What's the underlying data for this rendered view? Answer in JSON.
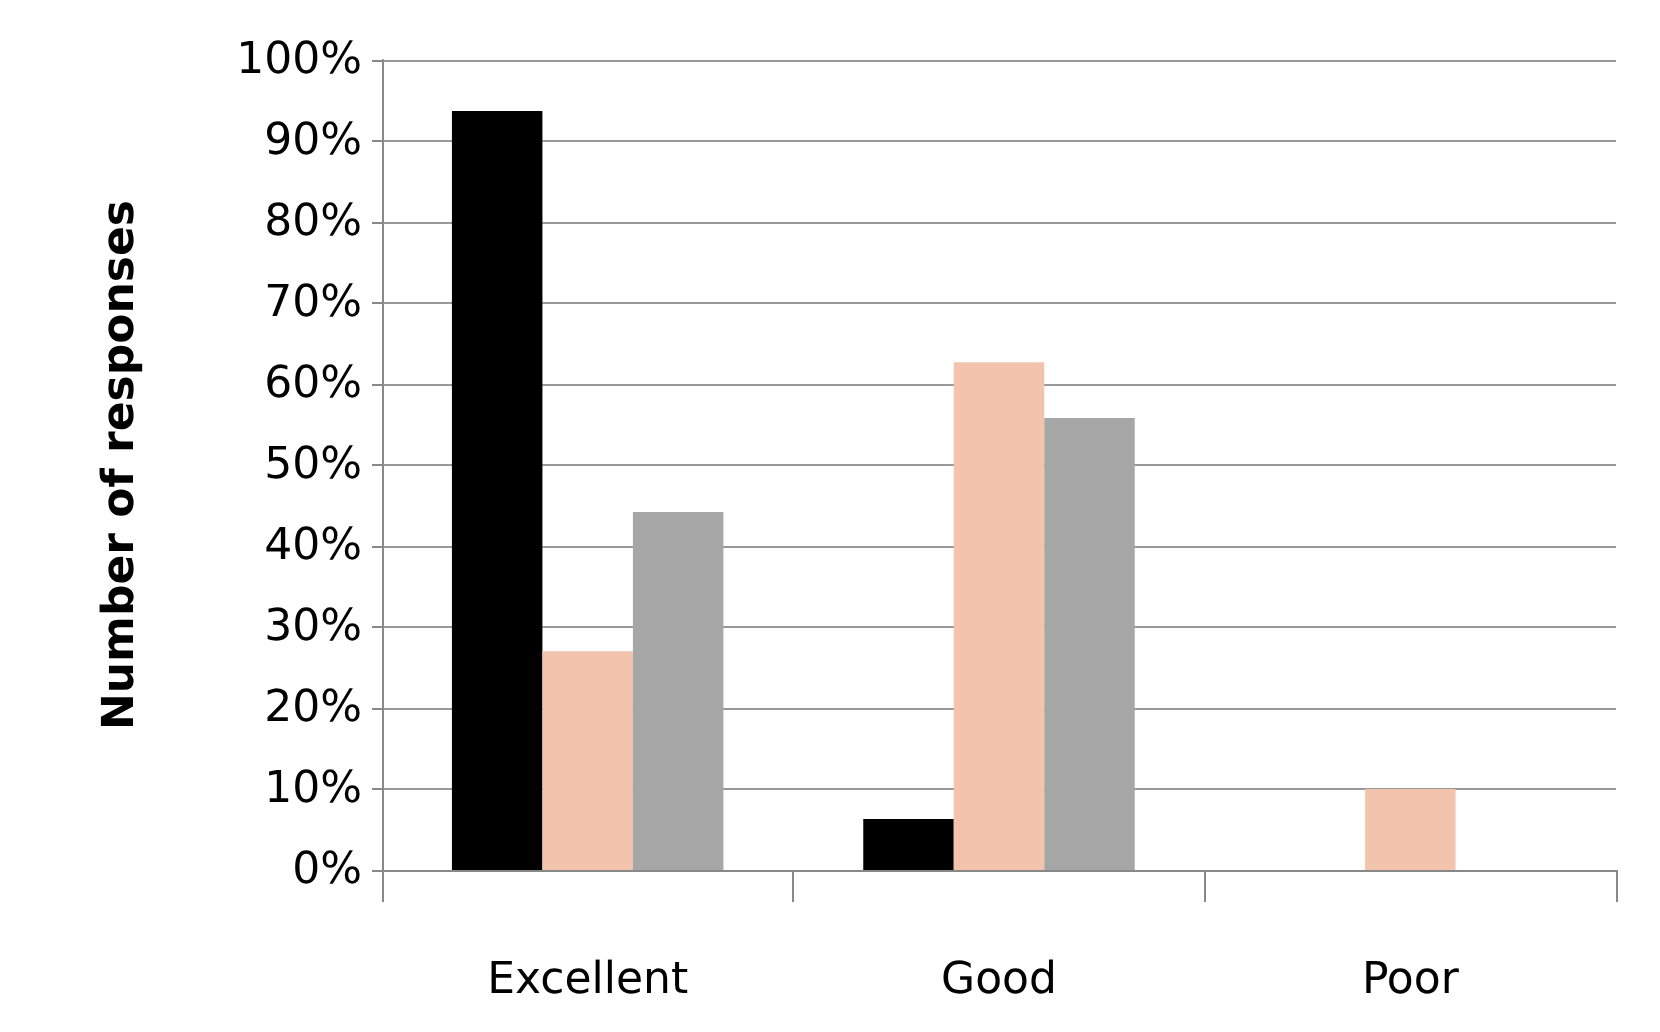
{
  "chart_data": {
    "type": "bar",
    "ylabel": "Number of responses",
    "categories": [
      "Excellent",
      "Good",
      "Poor"
    ],
    "series": [
      {
        "color": "#000000",
        "values": [
          93.7,
          6.3,
          0
        ]
      },
      {
        "color": "#f2c4ad",
        "values": [
          27,
          62.7,
          10
        ]
      },
      {
        "color": "#a6a6a6",
        "values": [
          44.2,
          55.8,
          0
        ]
      }
    ],
    "ylim": [
      0,
      100
    ],
    "yticks": [
      {
        "value": 0,
        "label": "0%"
      },
      {
        "value": 10,
        "label": "10%"
      },
      {
        "value": 20,
        "label": "20%"
      },
      {
        "value": 30,
        "label": "30%"
      },
      {
        "value": 40,
        "label": "40%"
      },
      {
        "value": 50,
        "label": "50%"
      },
      {
        "value": 60,
        "label": "60%"
      },
      {
        "value": 70,
        "label": "70%"
      },
      {
        "value": 80,
        "label": "80%"
      },
      {
        "value": 90,
        "label": "90%"
      },
      {
        "value": 100,
        "label": "100%"
      }
    ],
    "grid": "y"
  }
}
